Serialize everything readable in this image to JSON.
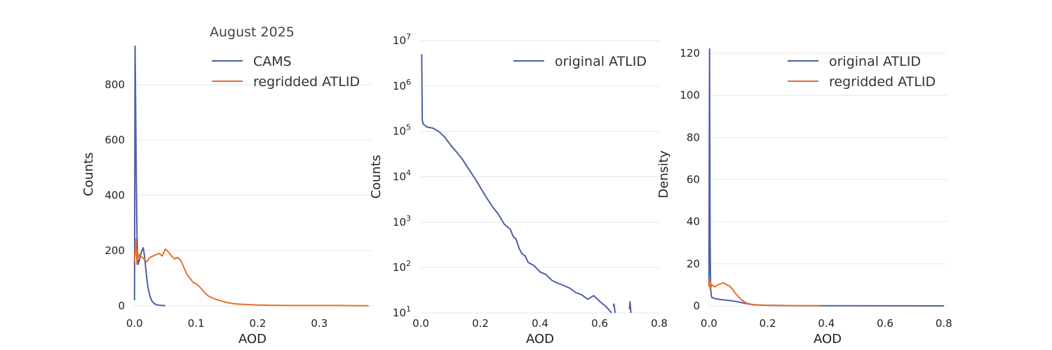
{
  "colors": {
    "blue": "#4e5ea8",
    "orange": "#e8702a",
    "grid": "#e6e6e6"
  },
  "chart_data": [
    {
      "type": "line",
      "xlabel": "AOD",
      "ylabel": "Counts",
      "xlim": [
        -0.002,
        0.385
      ],
      "ylim": [
        -8,
        960
      ],
      "xticks": [
        0.0,
        0.1,
        0.2,
        0.3
      ],
      "xtick_labels": [
        "0.0",
        "0.1",
        "0.2",
        "0.3"
      ],
      "yticks": [
        0,
        200,
        400,
        600,
        800
      ],
      "ytick_labels": [
        "0",
        "200",
        "400",
        "600",
        "800"
      ],
      "grid": true,
      "legend": {
        "title": "August 2025",
        "placement": "top-right"
      },
      "series": [
        {
          "name": "CAMS",
          "color": "#4e5ea8",
          "x": [
            0.0,
            0.001,
            0.002,
            0.003,
            0.004,
            0.005,
            0.006,
            0.008,
            0.01,
            0.012,
            0.014,
            0.016,
            0.018,
            0.02,
            0.022,
            0.025,
            0.028,
            0.032,
            0.036,
            0.04,
            0.045,
            0.05
          ],
          "y": [
            20,
            940,
            700,
            450,
            260,
            180,
            150,
            165,
            185,
            200,
            210,
            185,
            140,
            100,
            65,
            35,
            18,
            8,
            4,
            2,
            1,
            0
          ]
        },
        {
          "name": "regridded ATLID",
          "color": "#e8702a",
          "x": [
            0.0,
            0.002,
            0.004,
            0.005,
            0.006,
            0.008,
            0.01,
            0.015,
            0.02,
            0.025,
            0.03,
            0.035,
            0.04,
            0.045,
            0.05,
            0.055,
            0.06,
            0.065,
            0.07,
            0.075,
            0.08,
            0.085,
            0.09,
            0.095,
            0.1,
            0.105,
            0.11,
            0.115,
            0.12,
            0.13,
            0.14,
            0.15,
            0.16,
            0.17,
            0.18,
            0.19,
            0.2,
            0.22,
            0.25,
            0.28,
            0.3,
            0.33,
            0.36,
            0.38
          ],
          "y": [
            160,
            240,
            150,
            200,
            175,
            185,
            180,
            170,
            160,
            175,
            180,
            185,
            190,
            180,
            205,
            195,
            180,
            170,
            175,
            165,
            140,
            115,
            100,
            85,
            80,
            70,
            58,
            45,
            35,
            25,
            18,
            12,
            8,
            6,
            5,
            4,
            3,
            2,
            1,
            1,
            1,
            1,
            0,
            0
          ]
        }
      ]
    },
    {
      "type": "line",
      "xlabel": "AOD",
      "ylabel": "Counts",
      "yscale": "log",
      "xlim": [
        0.0,
        0.8
      ],
      "ylim": [
        10,
        10000000
      ],
      "xticks": [
        0.0,
        0.2,
        0.4,
        0.6,
        0.8
      ],
      "xtick_labels": [
        "0.0",
        "0.2",
        "0.4",
        "0.6",
        "0.8"
      ],
      "ytick_exponents": [
        1,
        2,
        3,
        4,
        5,
        6,
        7
      ],
      "ytick_base": "10",
      "grid": true,
      "legend": {
        "placement": "top-right"
      },
      "series": [
        {
          "name": "original ATLID",
          "color": "#4e5ea8",
          "x": [
            0.003,
            0.005,
            0.008,
            0.02,
            0.04,
            0.06,
            0.08,
            0.1,
            0.12,
            0.14,
            0.16,
            0.18,
            0.2,
            0.22,
            0.24,
            0.26,
            0.28,
            0.3,
            0.31,
            0.32,
            0.33,
            0.34,
            0.35,
            0.36,
            0.38,
            0.4,
            0.42,
            0.44,
            0.46,
            0.48,
            0.5,
            0.52,
            0.54,
            0.56,
            0.58,
            0.6,
            0.62,
            0.63,
            0.64
          ],
          "y": [
            5000000,
            180000,
            145000,
            125000,
            118000,
            100000,
            75000,
            50000,
            35000,
            24000,
            15000,
            9500,
            5800,
            3500,
            2200,
            1500,
            900,
            700,
            480,
            420,
            260,
            200,
            180,
            130,
            110,
            80,
            70,
            52,
            45,
            40,
            35,
            28,
            25,
            20,
            24,
            18,
            14,
            12,
            10
          ]
        }
      ],
      "extra_segments": [
        {
          "x": [
            0.646,
            0.648,
            0.652
          ],
          "y": [
            14,
            16,
            10
          ]
        },
        {
          "x": [
            0.7,
            0.702,
            0.705
          ],
          "y": [
            12,
            18,
            10
          ]
        }
      ]
    },
    {
      "type": "line",
      "xlabel": "AOD",
      "ylabel": "Density",
      "xlim": [
        -0.002,
        0.81
      ],
      "ylim": [
        -1,
        126
      ],
      "xticks": [
        0.0,
        0.2,
        0.4,
        0.6,
        0.8
      ],
      "xtick_labels": [
        "0.0",
        "0.2",
        "0.4",
        "0.6",
        "0.8"
      ],
      "yticks": [
        0,
        20,
        40,
        60,
        80,
        100,
        120
      ],
      "ytick_labels": [
        "0",
        "20",
        "40",
        "60",
        "80",
        "100",
        "120"
      ],
      "grid": true,
      "legend": {
        "placement": "top-right"
      },
      "series": [
        {
          "name": "original ATLID",
          "color": "#4e5ea8",
          "x": [
            0.0,
            0.002,
            0.004,
            0.006,
            0.008,
            0.01,
            0.02,
            0.04,
            0.06,
            0.08,
            0.1,
            0.12,
            0.14,
            0.16,
            0.2,
            0.3,
            0.4,
            0.6,
            0.8
          ],
          "y": [
            10,
            122,
            30,
            8,
            5,
            4,
            3.5,
            3.0,
            2.7,
            2.4,
            1.9,
            1.3,
            0.8,
            0.5,
            0.3,
            0.1,
            0.05,
            0.02,
            0.01
          ]
        },
        {
          "name": "regridded ATLID",
          "color": "#e8702a",
          "x": [
            0.0,
            0.002,
            0.004,
            0.006,
            0.008,
            0.01,
            0.015,
            0.02,
            0.03,
            0.04,
            0.05,
            0.06,
            0.07,
            0.08,
            0.09,
            0.1,
            0.11,
            0.12,
            0.13,
            0.15,
            0.2,
            0.25,
            0.3,
            0.38
          ],
          "y": [
            9,
            13,
            8,
            11,
            9,
            10,
            9.5,
            9,
            10,
            10.5,
            11,
            10,
            9.5,
            8,
            6,
            4.5,
            3,
            2,
            1.2,
            0.6,
            0.2,
            0.1,
            0.05,
            0.02
          ]
        }
      ]
    }
  ]
}
